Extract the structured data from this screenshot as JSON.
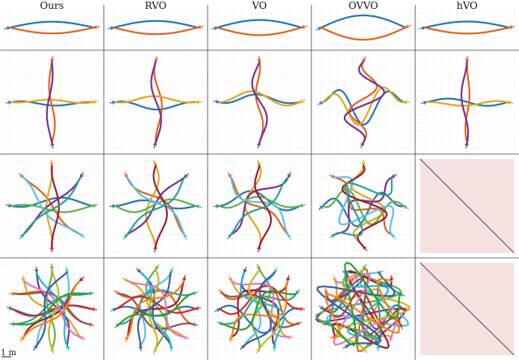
{
  "methods": [
    {
      "key": "ours",
      "label": "Ours"
    },
    {
      "key": "rvo",
      "label": "RVO"
    },
    {
      "key": "vo",
      "label": "VO"
    },
    {
      "key": "ovvo",
      "label": "OVVO"
    },
    {
      "key": "hvo",
      "label": "hVO"
    }
  ],
  "scenarios": [
    {
      "agents": 2
    },
    {
      "agents": 4
    },
    {
      "agents": 8
    },
    {
      "agents": 16
    }
  ],
  "missing_cells": [
    {
      "row": 2,
      "col": 4
    },
    {
      "row": 3,
      "col": 4
    }
  ],
  "scale_bar_label": "1 m",
  "colors": {
    "missing_fill": "#f6e1e1",
    "grid": "#c8c8c8",
    "frame": "#444444",
    "palette": [
      "#1f77b4",
      "#e0621c",
      "#e3a51a",
      "#7b2e8e",
      "#5fb04a",
      "#55c3e8",
      "#9b1b30",
      "#2aa198",
      "#d62728",
      "#8c564b",
      "#e377c2",
      "#17becf",
      "#bcbd22",
      "#3b5ba5",
      "#ff7f0e",
      "#2ca02c"
    ]
  }
}
